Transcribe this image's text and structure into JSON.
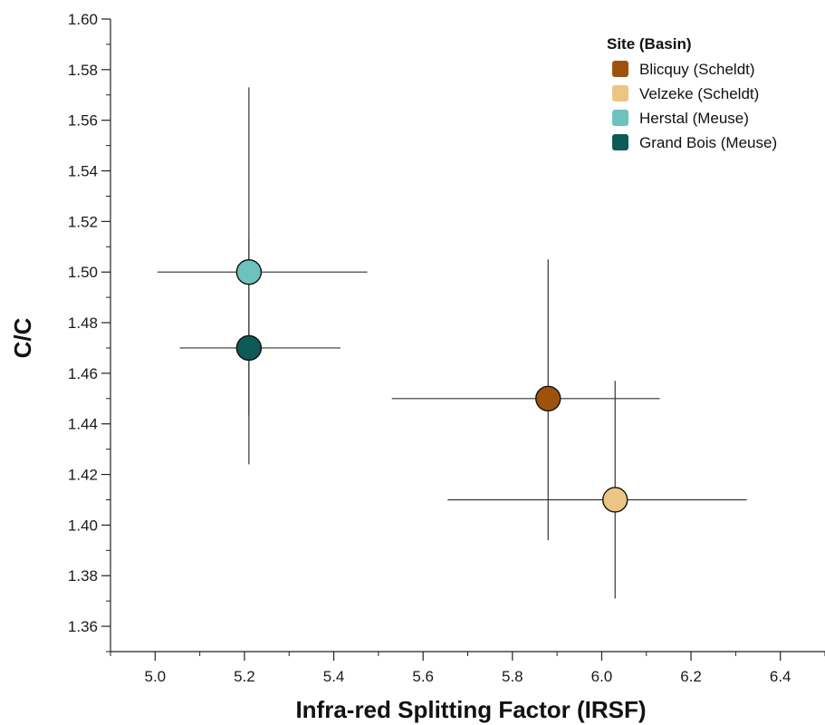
{
  "chart_data": {
    "type": "scatter",
    "xlabel": "Infra-red Splitting Factor (IRSF)",
    "ylabel": "C/C",
    "xlim": [
      4.9,
      6.5
    ],
    "ylim": [
      1.35,
      1.6
    ],
    "x_ticks": [
      5.0,
      5.2,
      5.4,
      5.6,
      5.8,
      6.0,
      6.2,
      6.4
    ],
    "x_tick_labels": [
      "5.0",
      "5.2",
      "5.4",
      "5.6",
      "5.8",
      "6.0",
      "6.2",
      "6.4"
    ],
    "y_ticks": [
      1.36,
      1.38,
      1.4,
      1.42,
      1.44,
      1.46,
      1.48,
      1.5,
      1.52,
      1.54,
      1.56,
      1.58,
      1.6
    ],
    "y_tick_labels": [
      "1.36",
      "1.38",
      "1.40",
      "1.42",
      "1.44",
      "1.46",
      "1.48",
      "1.50",
      "1.52",
      "1.54",
      "1.56",
      "1.58",
      "1.60"
    ],
    "grid": false,
    "legend": {
      "title": "Site (Basin)",
      "position": "top-right"
    },
    "series": [
      {
        "name": "Blicquy (Scheldt)",
        "color": "#a0520d",
        "x": 5.88,
        "y": 1.45,
        "x_err": [
          5.53,
          6.13
        ],
        "y_err": [
          1.394,
          1.505
        ]
      },
      {
        "name": "Velzeke (Scheldt)",
        "color": "#ecc483",
        "x": 6.03,
        "y": 1.41,
        "x_err": [
          5.655,
          6.325
        ],
        "y_err": [
          1.371,
          1.457
        ]
      },
      {
        "name": "Herstal (Meuse)",
        "color": "#6cc3bd",
        "x": 5.21,
        "y": 1.5,
        "x_err": [
          5.005,
          5.475
        ],
        "y_err": [
          1.4435,
          1.573
        ]
      },
      {
        "name": "Grand Bois (Meuse)",
        "color": "#0e5a56",
        "x": 5.21,
        "y": 1.47,
        "x_err": [
          5.055,
          5.415
        ],
        "y_err": [
          1.424,
          1.513
        ]
      }
    ]
  }
}
